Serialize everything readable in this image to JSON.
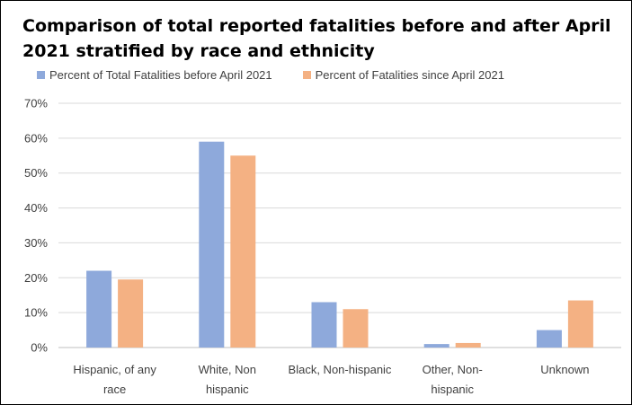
{
  "chart_data": {
    "type": "bar",
    "title_lines": [
      "Comparison of total reported fatalities before and after April",
      "2021 stratified by race and ethnicity"
    ],
    "categories": [
      [
        "Hispanic, of any",
        "race"
      ],
      [
        "White, Non",
        "hispanic"
      ],
      [
        "Black, Non-hispanic"
      ],
      [
        "Other, Non-",
        "hispanic"
      ],
      [
        "Unknown"
      ]
    ],
    "series": [
      {
        "name": "Percent of Total Fatalities before April 2021",
        "color": "#8EA9DB",
        "values": [
          22,
          59,
          13,
          1,
          5
        ]
      },
      {
        "name": "Percent of Fatalities since April 2021",
        "color": "#F4B183",
        "values": [
          19.5,
          55,
          11,
          1.3,
          13.5
        ]
      }
    ],
    "ylim": [
      0,
      70
    ],
    "yticks": [
      "0%",
      "10%",
      "20%",
      "30%",
      "40%",
      "50%",
      "60%",
      "70%"
    ],
    "grid": true,
    "legend_position": "top-left"
  }
}
